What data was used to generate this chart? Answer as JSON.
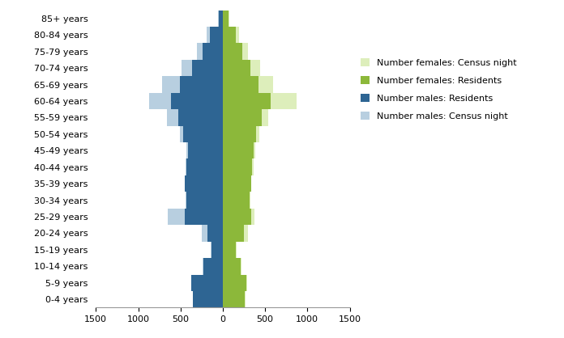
{
  "age_groups": [
    "0-4 years",
    "5-9 years",
    "10-14 years",
    "15-19 years",
    "20-24 years",
    "25-29 years",
    "30-34 years",
    "35-39 years",
    "40-44 years",
    "45-49 years",
    "50-54 years",
    "55-59 years",
    "60-64 years",
    "65-69 years",
    "70-74 years",
    "75-79 years",
    "80-84 years",
    "85+ years"
  ],
  "males_census_night": [
    350,
    370,
    240,
    140,
    250,
    650,
    440,
    450,
    440,
    430,
    510,
    660,
    870,
    720,
    490,
    310,
    195,
    55
  ],
  "males_residents": [
    350,
    370,
    230,
    130,
    180,
    450,
    430,
    450,
    430,
    410,
    470,
    530,
    610,
    510,
    360,
    240,
    155,
    50
  ],
  "females_census_night": [
    270,
    290,
    220,
    160,
    300,
    370,
    330,
    340,
    360,
    380,
    430,
    540,
    870,
    590,
    440,
    300,
    195,
    80
  ],
  "females_residents": [
    260,
    280,
    210,
    150,
    250,
    340,
    320,
    340,
    350,
    360,
    390,
    460,
    570,
    420,
    330,
    235,
    155,
    65
  ],
  "color_males_census": "#b8cfe0",
  "color_males_residents": "#2e6593",
  "color_females_census": "#ddeebb",
  "color_females_residents": "#8cb83a",
  "xlim": 1500,
  "xticks": [
    -1500,
    -1000,
    -500,
    0,
    500,
    1000,
    1500
  ],
  "legend_labels": [
    "Number females: Census night",
    "Number females: Residents",
    "Number males: Residents",
    "Number males: Census night"
  ],
  "legend_colors": [
    "#ddeebb",
    "#8cb83a",
    "#2e6593",
    "#b8cfe0"
  ]
}
